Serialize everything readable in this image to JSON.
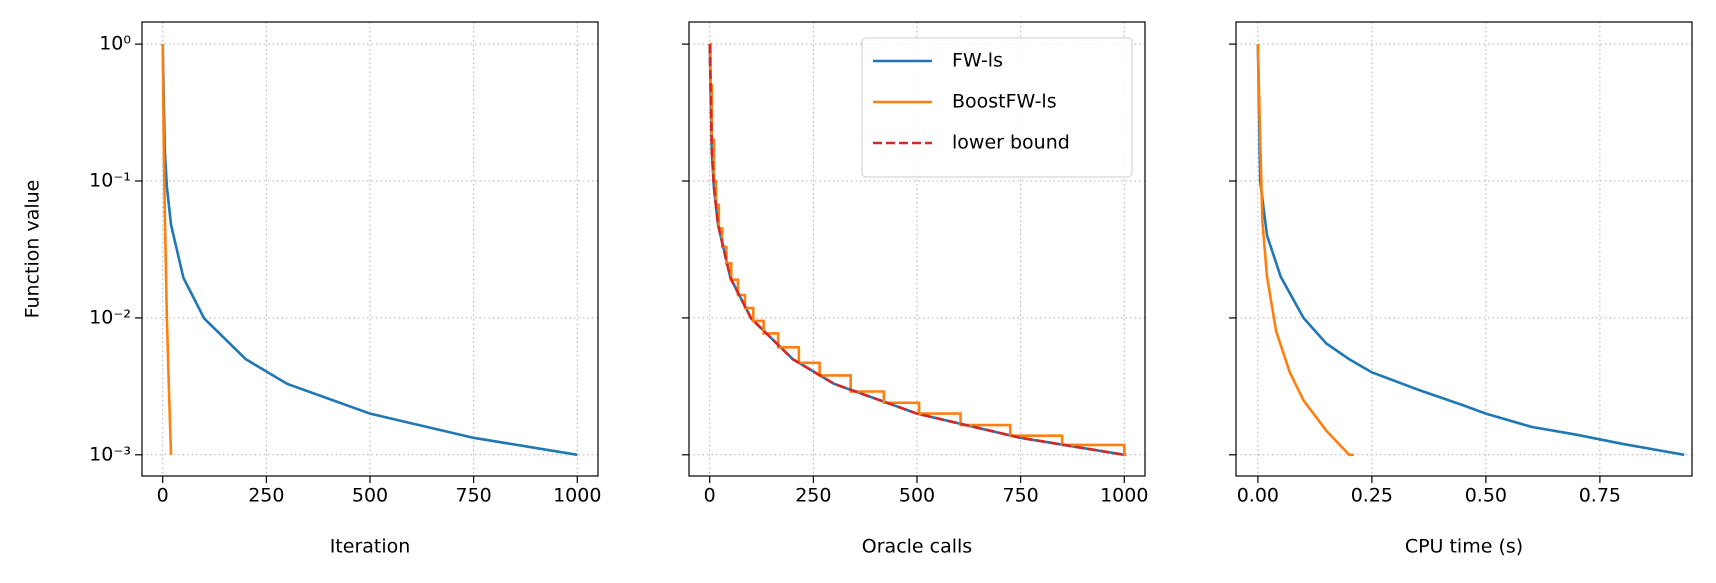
{
  "chart_data": [
    {
      "type": "line",
      "xlabel": "Iteration",
      "ylabel": "Function value",
      "log_y": true,
      "grid": true,
      "xlim": [
        -50,
        1050
      ],
      "ylim": [
        0.0007,
        1.45
      ],
      "xticks": [
        0,
        250,
        500,
        750,
        1000
      ],
      "yticks": [
        {
          "value": 0.001,
          "label": "10⁻³"
        },
        {
          "value": 0.01,
          "label": "10⁻²"
        },
        {
          "value": 0.1,
          "label": "10⁻¹"
        },
        {
          "value": 1,
          "label": "10⁰"
        }
      ],
      "series": [
        {
          "color": "#1f77b4",
          "linestyle": "solid",
          "x": [
            0,
            5,
            10,
            20,
            50,
            100,
            200,
            300,
            500,
            750,
            1000
          ],
          "values": [
            1,
            0.167,
            0.091,
            0.048,
            0.0196,
            0.0099,
            0.005,
            0.0033,
            0.002,
            0.00133,
            0.001
          ]
        },
        {
          "color": "#ff7f0e",
          "linestyle": "solid",
          "x": [
            0,
            2,
            5,
            10,
            15,
            20
          ],
          "values": [
            1,
            0.25,
            0.06,
            0.01,
            0.003,
            0.001
          ]
        }
      ]
    },
    {
      "type": "line",
      "xlabel": "Oracle calls",
      "log_y": true,
      "grid": true,
      "legend": "upper right",
      "xlim": [
        -50,
        1050
      ],
      "ylim": [
        0.0007,
        1.45
      ],
      "xticks": [
        0,
        250,
        500,
        750,
        1000
      ],
      "yticks": [
        0.001,
        0.01,
        0.1,
        1
      ],
      "series": [
        {
          "name": "FW-ls",
          "color": "#1f77b4",
          "linestyle": "solid",
          "x": [
            0,
            5,
            10,
            20,
            50,
            100,
            200,
            300,
            500,
            750,
            1000
          ],
          "values": [
            1,
            0.167,
            0.091,
            0.048,
            0.0196,
            0.0099,
            0.005,
            0.0033,
            0.002,
            0.00133,
            0.001
          ]
        },
        {
          "name": "BoostFW-ls",
          "color": "#ff7f0e",
          "linestyle": "solid",
          "x": [
            0,
            2,
            2,
            5,
            5,
            10,
            10,
            15,
            15,
            22,
            22,
            30,
            30,
            40,
            40,
            52,
            52,
            68,
            68,
            85,
            85,
            105,
            105,
            130,
            130,
            165,
            165,
            215,
            215,
            265,
            265,
            340,
            340,
            420,
            420,
            505,
            505,
            605,
            605,
            725,
            725,
            850,
            850,
            1000,
            1000,
            1005
          ],
          "values": [
            1,
            1,
            0.5,
            0.5,
            0.2,
            0.2,
            0.1,
            0.1,
            0.067,
            0.067,
            0.045,
            0.045,
            0.033,
            0.033,
            0.025,
            0.025,
            0.019,
            0.019,
            0.0147,
            0.0147,
            0.0118,
            0.0118,
            0.0095,
            0.0095,
            0.0077,
            0.0077,
            0.0061,
            0.0061,
            0.0047,
            0.0047,
            0.0038,
            0.0038,
            0.0029,
            0.0029,
            0.0024,
            0.0024,
            0.002,
            0.002,
            0.00165,
            0.00165,
            0.00138,
            0.00138,
            0.00118,
            0.00118,
            0.001,
            0.001
          ]
        },
        {
          "name": "lower bound",
          "color": "#d62728",
          "linestyle": "dashed",
          "x": [
            0,
            5,
            10,
            20,
            50,
            100,
            200,
            300,
            500,
            750,
            1000
          ],
          "values": [
            1,
            0.167,
            0.091,
            0.048,
            0.0196,
            0.0099,
            0.005,
            0.0033,
            0.002,
            0.00133,
            0.001
          ]
        }
      ]
    },
    {
      "type": "line",
      "xlabel": "CPU time (s)",
      "log_y": true,
      "grid": true,
      "xlim": [
        -0.048,
        0.952
      ],
      "ylim": [
        0.0007,
        1.45
      ],
      "xticks": [
        {
          "value": 0,
          "label": "0.00"
        },
        {
          "value": 0.25,
          "label": "0.25"
        },
        {
          "value": 0.5,
          "label": "0.50"
        },
        {
          "value": 0.75,
          "label": "0.75"
        }
      ],
      "yticks": [
        0.001,
        0.01,
        0.1,
        1
      ],
      "series": [
        {
          "color": "#1f77b4",
          "linestyle": "solid",
          "x": [
            0,
            0.005,
            0.02,
            0.05,
            0.1,
            0.15,
            0.2,
            0.25,
            0.35,
            0.45,
            0.5,
            0.6,
            0.7,
            0.8,
            0.935
          ],
          "values": [
            1,
            0.1,
            0.04,
            0.02,
            0.01,
            0.0065,
            0.005,
            0.004,
            0.003,
            0.0023,
            0.002,
            0.0016,
            0.0014,
            0.0012,
            0.001
          ]
        },
        {
          "color": "#ff7f0e",
          "linestyle": "solid",
          "x": [
            0,
            0.005,
            0.01,
            0.02,
            0.04,
            0.07,
            0.1,
            0.15,
            0.2,
            0.21
          ],
          "values": [
            1,
            0.2,
            0.05,
            0.02,
            0.008,
            0.004,
            0.0025,
            0.0015,
            0.001,
            0.001
          ]
        }
      ]
    }
  ]
}
